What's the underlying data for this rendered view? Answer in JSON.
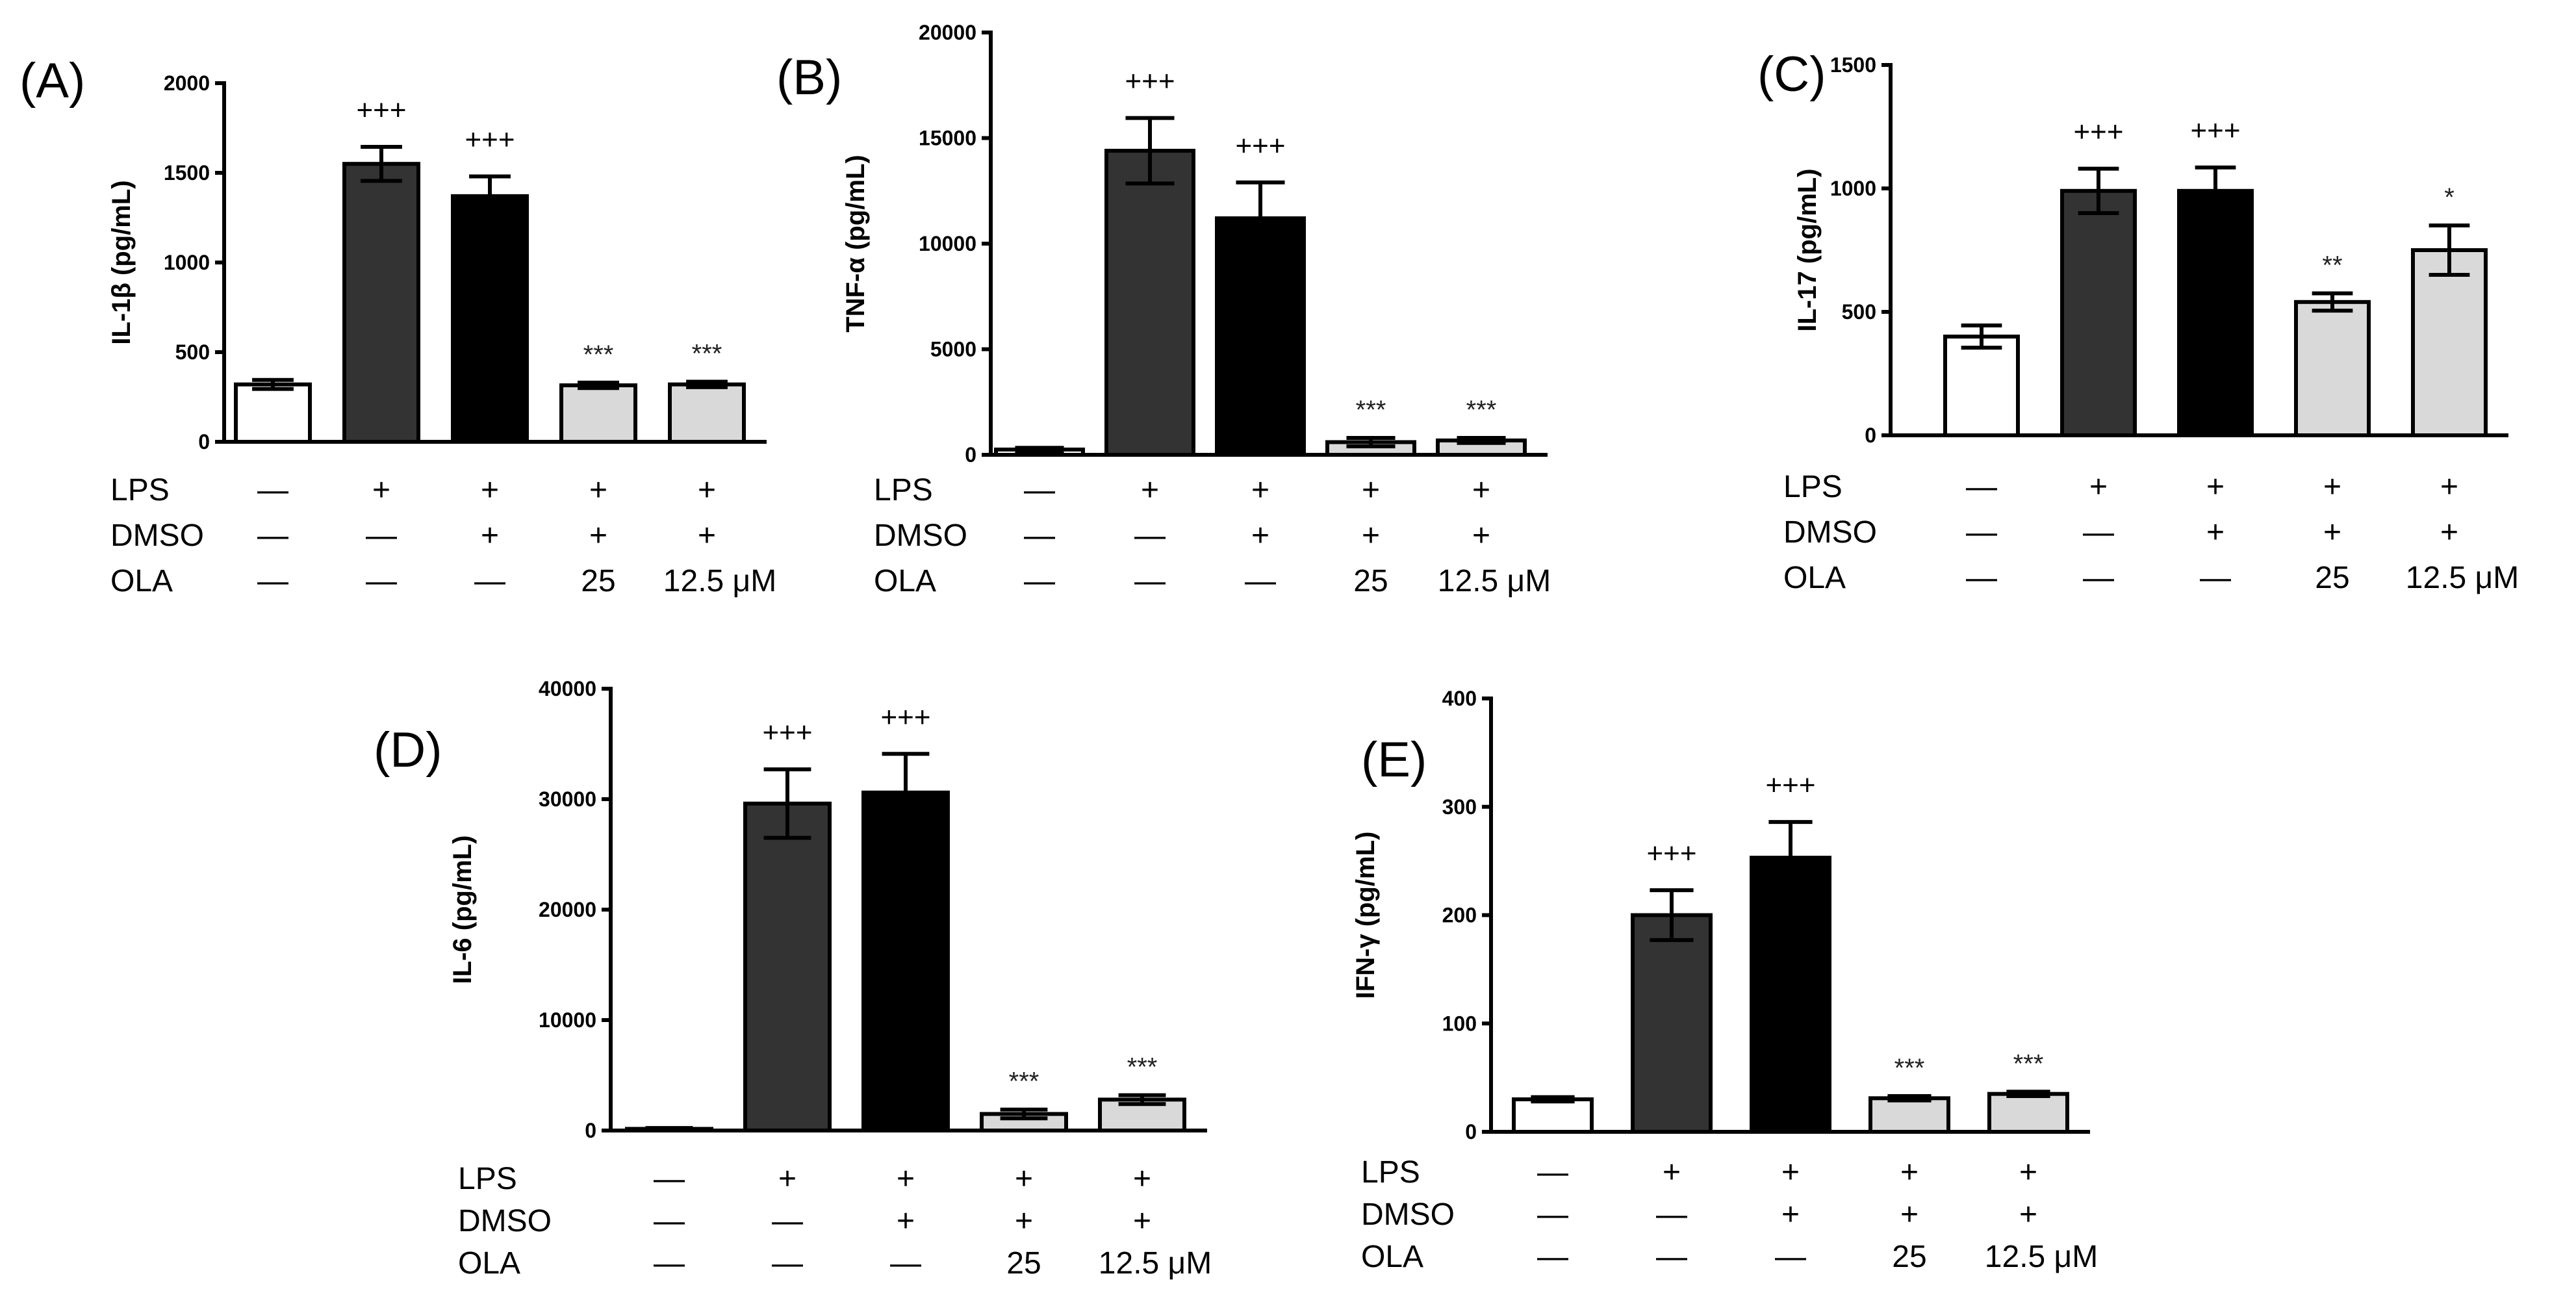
{
  "colors": {
    "white": "#ffffff",
    "dark": "#333333",
    "black": "#000000",
    "light": "#d9d9d9"
  },
  "conditions": {
    "rows": [
      {
        "label": "LPS",
        "values": [
          "—",
          "+",
          "+",
          "+",
          "+"
        ]
      },
      {
        "label": "DMSO",
        "values": [
          "—",
          "—",
          "+",
          "+",
          "+"
        ]
      },
      {
        "label": "OLA",
        "values": [
          "—",
          "—",
          "—",
          "25",
          "12.5 μM"
        ]
      }
    ]
  },
  "chart_data": [
    {
      "panel": "(A)",
      "type": "bar",
      "ylabel": "IL-1β (pg/mL)",
      "ylim": [
        0,
        2000
      ],
      "yticks": [
        0,
        500,
        1000,
        1500,
        2000
      ],
      "ytick_labels": [
        "0",
        "500",
        "1000",
        "1500",
        "2000"
      ],
      "bar_colors": [
        "white",
        "dark",
        "black",
        "light",
        "light"
      ],
      "values": [
        320,
        1550,
        1370,
        315,
        320
      ],
      "errors": [
        25,
        95,
        110,
        15,
        15
      ],
      "annotations": [
        "",
        "+++",
        "+++",
        "***",
        "***"
      ]
    },
    {
      "panel": "(B)",
      "type": "bar",
      "ylabel": "TNF-α (pg/mL)",
      "ylim": [
        0,
        20000
      ],
      "yticks": [
        0,
        5000,
        10000,
        15000,
        20000
      ],
      "ytick_labels": [
        "0",
        "5000",
        "10000",
        "15000",
        "20000"
      ],
      "bar_colors": [
        "white",
        "dark",
        "black",
        "light",
        "light"
      ],
      "values": [
        250,
        14400,
        11200,
        600,
        680
      ],
      "errors": [
        80,
        1550,
        1700,
        200,
        120
      ],
      "annotations": [
        "",
        "+++",
        "+++",
        "***",
        "***"
      ]
    },
    {
      "panel": "(C)",
      "type": "bar",
      "ylabel": "IL-17 (pg/mL)",
      "ylim": [
        0,
        1500
      ],
      "yticks": [
        0,
        500,
        1000,
        1500
      ],
      "ytick_labels": [
        "0",
        "500",
        "1000",
        "1500"
      ],
      "bar_colors": [
        "white",
        "dark",
        "black",
        "light",
        "light"
      ],
      "values": [
        400,
        990,
        990,
        540,
        750
      ],
      "errors": [
        45,
        90,
        95,
        35,
        100
      ],
      "annotations": [
        "",
        "+++",
        "+++",
        "**",
        "*"
      ]
    },
    {
      "panel": "(D)",
      "type": "bar",
      "ylabel": "IL-6 (pg/mL)",
      "ylim": [
        0,
        40000
      ],
      "yticks": [
        0,
        10000,
        20000,
        30000,
        40000
      ],
      "ytick_labels": [
        "0",
        "10000",
        "20000",
        "30000",
        "40000"
      ],
      "bar_colors": [
        "white",
        "dark",
        "black",
        "light",
        "light"
      ],
      "values": [
        150,
        29600,
        30600,
        1500,
        2800
      ],
      "errors": [
        80,
        3100,
        3500,
        400,
        400
      ],
      "annotations": [
        "",
        "+++",
        "+++",
        "***",
        "***"
      ]
    },
    {
      "panel": "(E)",
      "type": "bar",
      "ylabel": "IFN-γ (pg/mL)",
      "ylim": [
        0,
        400
      ],
      "yticks": [
        0,
        100,
        200,
        300,
        400
      ],
      "ytick_labels": [
        "0",
        "100",
        "200",
        "300",
        "400"
      ],
      "bar_colors": [
        "white",
        "dark",
        "black",
        "light",
        "light"
      ],
      "values": [
        30,
        200,
        253,
        31,
        35
      ],
      "errors": [
        2,
        23,
        33,
        2,
        2
      ],
      "annotations": [
        "",
        "+++",
        "+++",
        "***",
        "***"
      ]
    }
  ]
}
